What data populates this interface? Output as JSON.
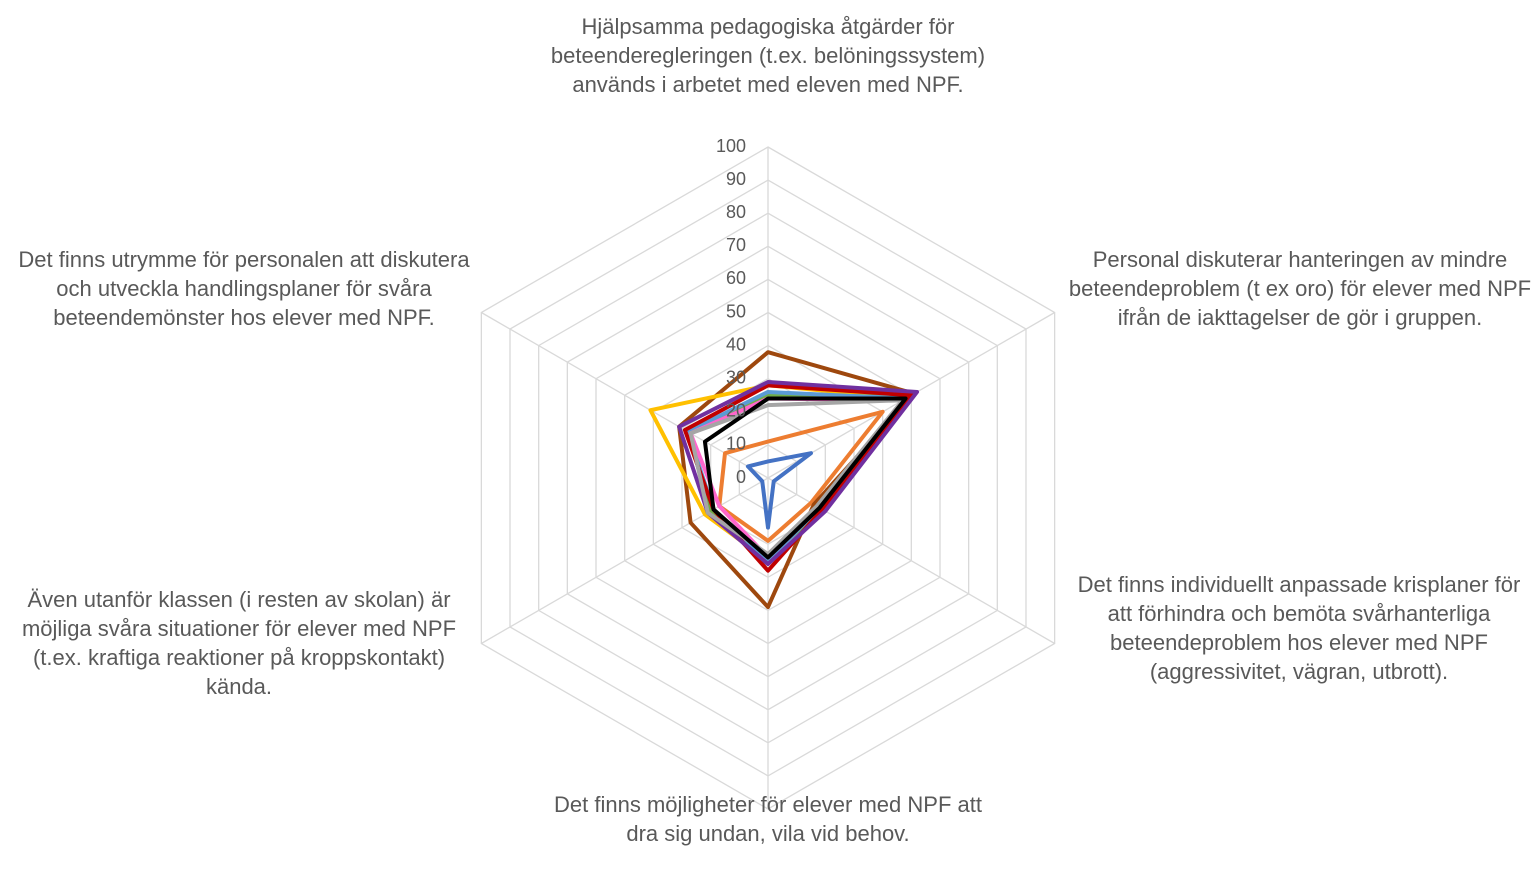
{
  "chart_data": {
    "type": "radar",
    "categories": [
      "Hjälpsamma pedagogiska åtgärder för beteenderegleringen (t.ex. belöningssystem) används i arbetet med eleven med NPF.",
      "Personal diskuterar hanteringen av mindre beteendeproblem (t ex oro) för elever med NPF ifrån de iakttagelser de gör i gruppen.",
      "Det finns individuellt anpassade krisplaner för att förhindra och bemöta svårhanterliga beteendeproblem hos elever med NPF (aggressivitet, vägran, utbrott).",
      "Det finns möjligheter för elever med NPF att dra sig undan, vila vid behov.",
      "Även utanför klassen (i resten av skolan) är möjliga svåra situationer för elever med NPF (t.ex. kraftiga reaktioner på kroppskontakt) kända.",
      "Det finns utrymme för personalen att diskutera och utveckla handlingsplaner för svåra beteendemönster hos elever med NPF."
    ],
    "series": [
      {
        "color": "#4472c4",
        "values": [
          5,
          15,
          2,
          15,
          2,
          7
        ]
      },
      {
        "color": "#ed7d31",
        "values": [
          11,
          40,
          15,
          19,
          17,
          15
        ]
      },
      {
        "color": "#9e480e",
        "values": [
          38,
          51,
          16,
          39,
          27,
          31
        ]
      },
      {
        "color": "#ffc000",
        "values": [
          28,
          48,
          18,
          25,
          22,
          41
        ]
      },
      {
        "color": "#70ad47",
        "values": [
          25,
          49,
          19,
          24,
          20,
          28
        ]
      },
      {
        "color": "#5b9bd5",
        "values": [
          26,
          48,
          18,
          25,
          19,
          28
        ]
      },
      {
        "color": "#ff66cc",
        "values": [
          24,
          47,
          18,
          24,
          17,
          27
        ]
      },
      {
        "color": "#c00000",
        "values": [
          28,
          50,
          19,
          28,
          19,
          29
        ]
      },
      {
        "color": "#7030a0",
        "values": [
          29,
          52,
          20,
          26,
          21,
          31
        ]
      },
      {
        "color": "#a5a5a5",
        "values": [
          22,
          47,
          17,
          23,
          21,
          27
        ]
      },
      {
        "color": "#000000",
        "values": [
          24,
          48,
          18,
          24,
          19,
          22
        ]
      }
    ],
    "ylim": [
      0,
      100
    ],
    "yticks": [
      0,
      10,
      20,
      30,
      40,
      50,
      60,
      70,
      80,
      90,
      100
    ],
    "grid": true
  }
}
